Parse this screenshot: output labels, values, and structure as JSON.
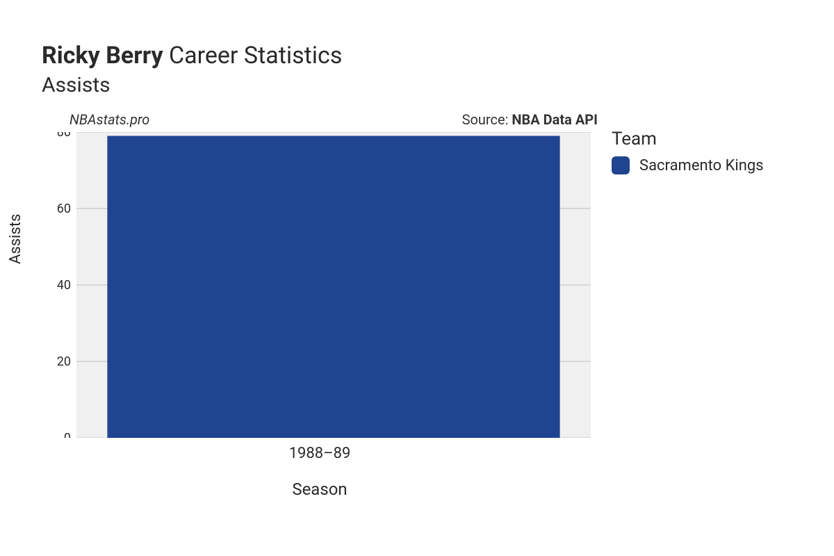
{
  "title": {
    "player": "Ricky Berry",
    "rest": "Career Statistics",
    "subtitle": "Assists",
    "title_fontsize": 34,
    "subtitle_fontsize": 30
  },
  "attribution": {
    "site": "NBAstats.pro",
    "source_prefix": "Source: ",
    "source_name": "NBA Data API"
  },
  "chart": {
    "type": "bar",
    "categories": [
      "1988–89"
    ],
    "values": [
      79
    ],
    "bar_colors": [
      "#1f4490"
    ],
    "ylabel": "Assists",
    "xlabel": "Season",
    "ylim": [
      0,
      80
    ],
    "ytick_step": 20,
    "yticks": [
      0,
      20,
      40,
      60,
      80
    ],
    "background_color": "#ffffff",
    "plot_background": "#f0f0f0",
    "grid_color": "#bfbfbf",
    "bar_width": 0.88,
    "tick_fontsize": 18,
    "axis_label_fontsize": 22
  },
  "legend": {
    "title": "Team",
    "items": [
      {
        "label": "Sacramento Kings",
        "color": "#1f4490"
      }
    ],
    "title_fontsize": 26,
    "item_fontsize": 22
  }
}
